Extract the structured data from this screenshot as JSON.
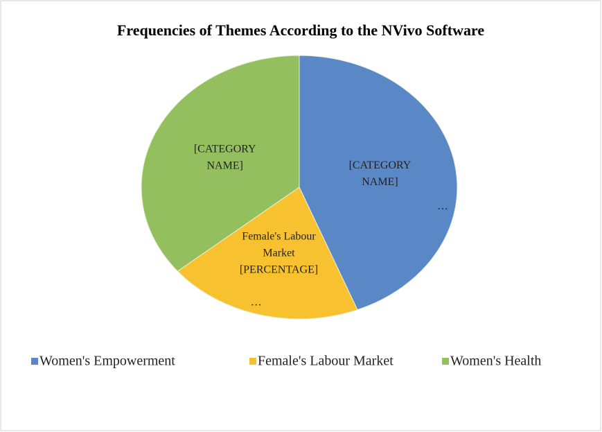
{
  "chart_data": {
    "type": "pie",
    "title": "Frequencies of Themes According to the NVivo Software",
    "categories": [
      "Women's Empowerment",
      "Female's Labour Market",
      "Women's Health"
    ],
    "values": [
      44,
      20,
      36
    ],
    "colors": [
      "#5a87c6",
      "#f8c12f",
      "#93bf5e"
    ],
    "data_labels": [
      [
        "[CATEGORY",
        "NAME]",
        "…"
      ],
      [
        "Female's Labour",
        "Market",
        "[PERCENTAGE]",
        "…"
      ],
      [
        "[CATEGORY",
        "NAME]"
      ]
    ],
    "legend": "bottom"
  }
}
